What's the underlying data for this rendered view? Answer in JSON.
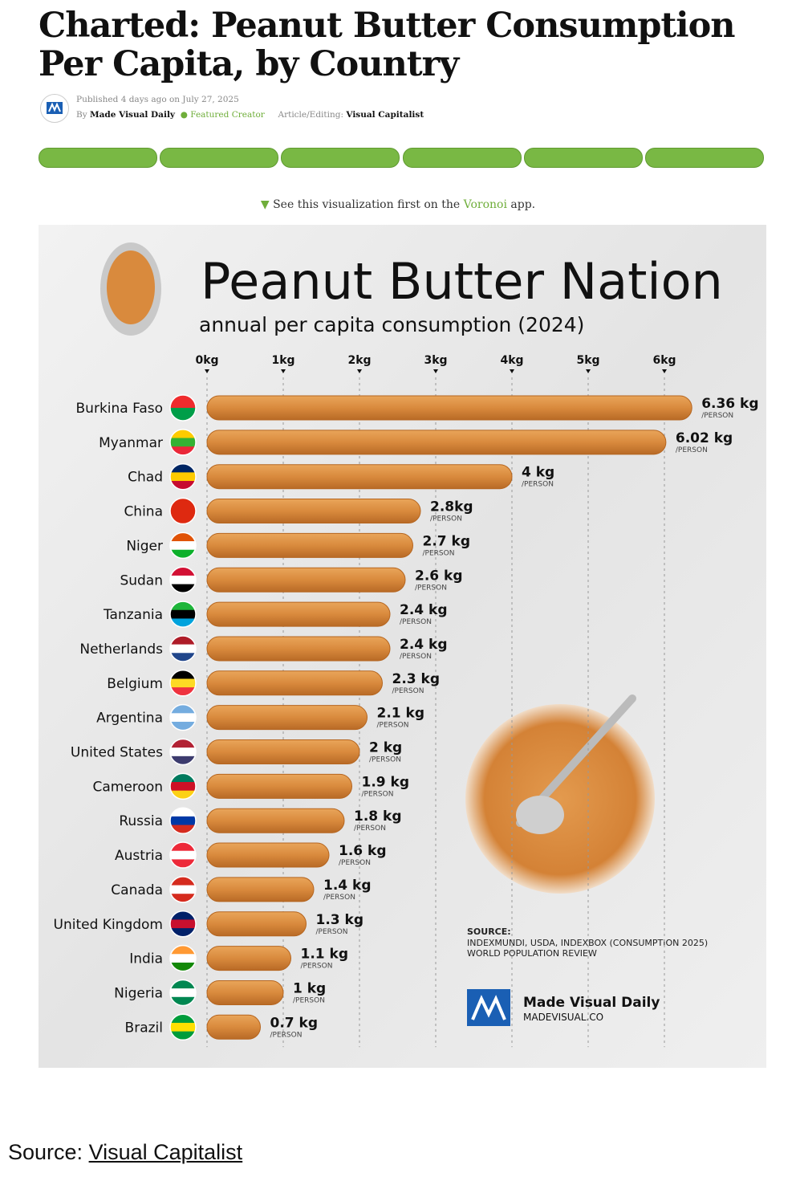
{
  "article": {
    "title": "Charted: Peanut Butter Consumption Per Capita, by Country",
    "published": "Published 4 days ago on July 27, 2025",
    "by": "By",
    "author": "Made Visual Daily",
    "badge": "Featured Creator",
    "editing_label": "Article/Editing:",
    "editor": "Visual Capitalist",
    "voronoi_pre": "See this visualization first on the",
    "voronoi_link": "Voronoi",
    "voronoi_post": "app."
  },
  "footer": {
    "label": "Source:",
    "link": "Visual Capitalist"
  },
  "chart_data": {
    "type": "bar",
    "orientation": "horizontal",
    "title": "Peanut Butter Nation",
    "subtitle": "annual per capita consumption (2024)",
    "categories": [
      "Burkina Faso",
      "Myanmar",
      "Chad",
      "China",
      "Niger",
      "Sudan",
      "Tanzania",
      "Netherlands",
      "Belgium",
      "Argentina",
      "United States",
      "Cameroon",
      "Russia",
      "Austria",
      "Canada",
      "United Kingdom",
      "India",
      "Nigeria",
      "Brazil"
    ],
    "values": [
      6.36,
      6.02,
      4,
      2.8,
      2.7,
      2.6,
      2.4,
      2.4,
      2.3,
      2.1,
      2,
      1.9,
      1.8,
      1.6,
      1.4,
      1.3,
      1.1,
      1,
      0.7
    ],
    "value_labels": [
      "6.36 kg",
      "6.02 kg",
      "4 kg",
      "2.8kg",
      "2.7 kg",
      "2.6 kg",
      "2.4 kg",
      "2.4 kg",
      "2.3 kg",
      "2.1 kg",
      "2 kg",
      "1.9 kg",
      "1.8 kg",
      "1.6 kg",
      "1.4 kg",
      "1.3 kg",
      "1.1 kg",
      "1 kg",
      "0.7 kg"
    ],
    "value_unit": "/PERSON",
    "color": "#d98a3d",
    "xlim": [
      0,
      7
    ],
    "xticks": [
      {
        "value": 0,
        "label": "0kg"
      },
      {
        "value": 1,
        "label": "1kg"
      },
      {
        "value": 2,
        "label": "2kg"
      },
      {
        "value": 3,
        "label": "3kg"
      },
      {
        "value": 4,
        "label": "4kg"
      },
      {
        "value": 5,
        "label": "5kg"
      },
      {
        "value": 6,
        "label": "6kg"
      }
    ],
    "grid": true,
    "source_label": "SOURCE:",
    "source_lines": [
      "INDEXMUNDI, USDA, INDEXBOX (CONSUMPTION 2025)",
      "WORLD POPULATION REVIEW"
    ],
    "brand": "Made Visual Daily",
    "brand_url": "MADEVISUAL.CO"
  }
}
